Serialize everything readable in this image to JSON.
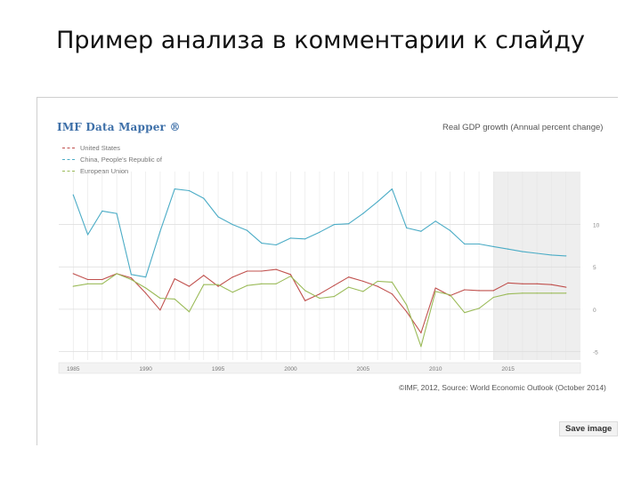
{
  "slide": {
    "title": "Пример анализа в комментарии к слайду"
  },
  "widget": {
    "brand": "IMF Data Mapper ®",
    "source": "©IMF, 2012, Source: World Economic Outlook (October 2014)",
    "save_label": "Save image"
  },
  "colors": {
    "us": "#c0504d",
    "china": "#4bacc6",
    "eu": "#9bbb59",
    "projection_shade": "#eeeeee"
  },
  "chart_data": {
    "type": "line",
    "title": "Real GDP growth (Annual percent change)",
    "xlabel": "",
    "ylabel": "",
    "x": [
      1985,
      1986,
      1987,
      1988,
      1989,
      1990,
      1991,
      1992,
      1993,
      1994,
      1995,
      1996,
      1997,
      1998,
      1999,
      2000,
      2001,
      2002,
      2003,
      2004,
      2005,
      2006,
      2007,
      2008,
      2009,
      2010,
      2011,
      2012,
      2013,
      2014,
      2015,
      2016,
      2017,
      2018,
      2019
    ],
    "x_tick_labels": [
      "1985",
      "1990",
      "1995",
      "2000",
      "2005",
      "2010",
      "2015"
    ],
    "y_ticks": [
      -5,
      0,
      5,
      10
    ],
    "ylim": [
      -6,
      15
    ],
    "xlim": [
      1984,
      2020
    ],
    "grid": true,
    "legend_position": "top-left",
    "projection_start": 2014,
    "series": [
      {
        "name": "United States",
        "key": "us",
        "values": [
          4.2,
          3.5,
          3.5,
          4.2,
          3.7,
          1.9,
          -0.1,
          3.6,
          2.7,
          4.0,
          2.7,
          3.8,
          4.5,
          4.5,
          4.7,
          4.1,
          1.0,
          1.8,
          2.8,
          3.8,
          3.3,
          2.7,
          1.8,
          -0.3,
          -2.8,
          2.5,
          1.6,
          2.3,
          2.2,
          2.2,
          3.1,
          3.0,
          3.0,
          2.9,
          2.6
        ]
      },
      {
        "name": "China, People's Republic of",
        "key": "china",
        "values": [
          13.5,
          8.8,
          11.6,
          11.3,
          4.1,
          3.8,
          9.2,
          14.2,
          14.0,
          13.1,
          10.9,
          10.0,
          9.3,
          7.8,
          7.6,
          8.4,
          8.3,
          9.1,
          10.0,
          10.1,
          11.3,
          12.7,
          14.2,
          9.6,
          9.2,
          10.4,
          9.3,
          7.7,
          7.7,
          7.4,
          7.1,
          6.8,
          6.6,
          6.4,
          6.3
        ]
      },
      {
        "name": "European Union",
        "key": "eu",
        "values": [
          2.7,
          3.0,
          3.0,
          4.2,
          3.5,
          2.5,
          1.3,
          1.2,
          -0.3,
          2.9,
          2.9,
          2.0,
          2.8,
          3.0,
          3.0,
          3.9,
          2.2,
          1.3,
          1.5,
          2.6,
          2.1,
          3.3,
          3.2,
          0.5,
          -4.4,
          2.1,
          1.7,
          -0.4,
          0.1,
          1.4,
          1.8,
          1.9,
          1.9,
          1.9,
          1.9
        ]
      }
    ]
  }
}
